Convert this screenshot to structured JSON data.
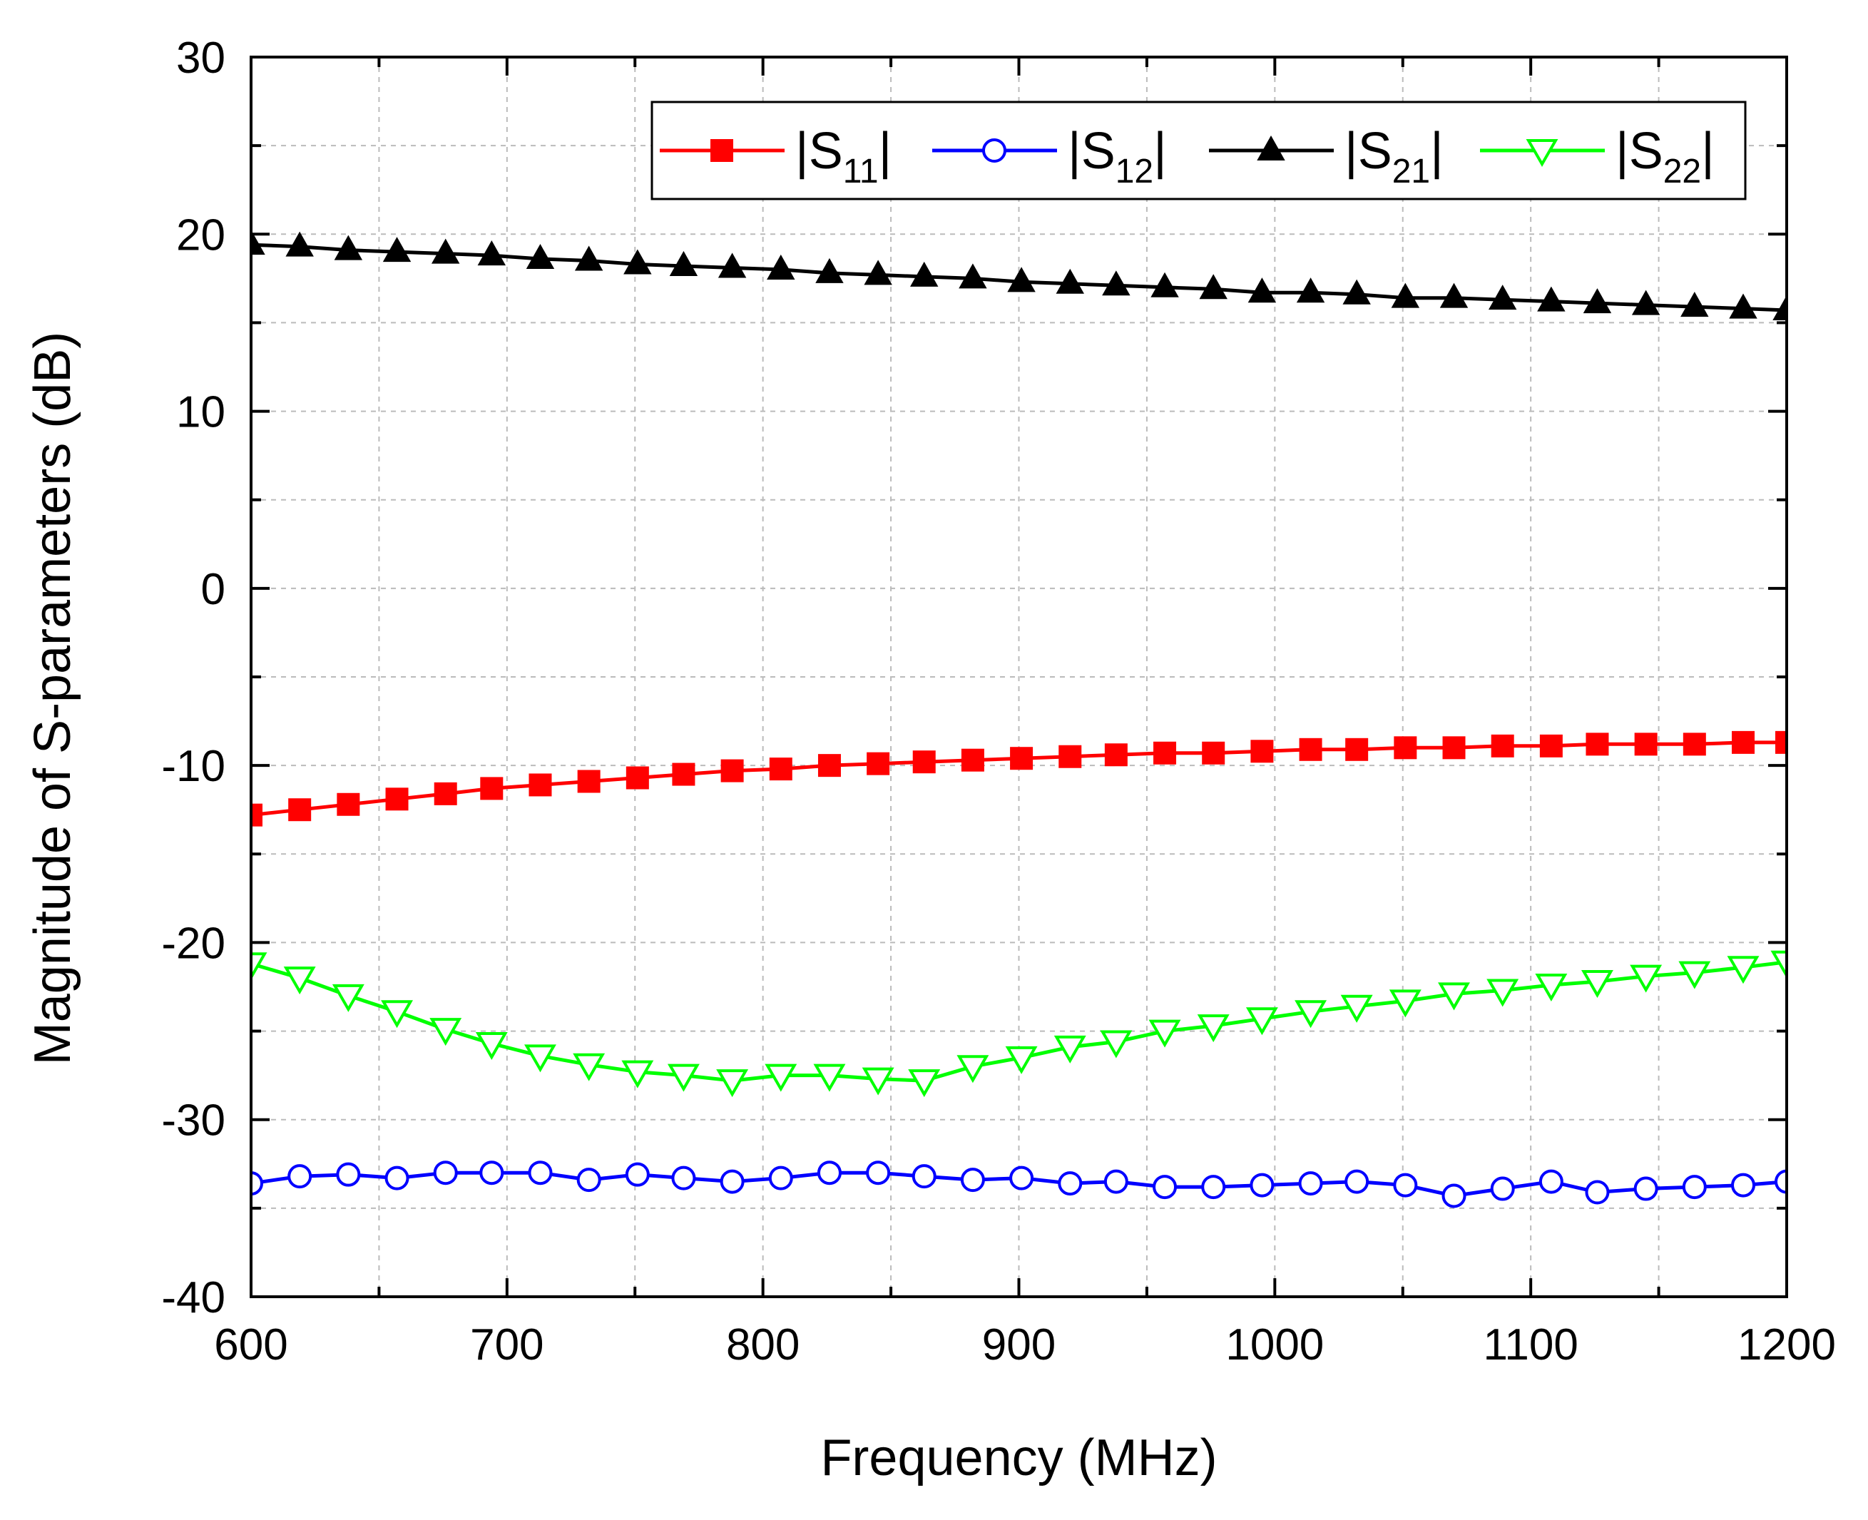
{
  "chart_data": {
    "type": "line",
    "title": "",
    "xlabel": "Frequency (MHz)",
    "ylabel": "Magnitude of S-parameters (dB)",
    "xlim": [
      600,
      1200
    ],
    "ylim": [
      -40,
      30
    ],
    "xticks": [
      600,
      700,
      800,
      900,
      1000,
      1100,
      1200
    ],
    "xtick_labels": [
      "600",
      "700",
      "800",
      "900",
      "1000",
      "1100",
      "1200"
    ],
    "yticks": [
      -40,
      -30,
      -20,
      -10,
      0,
      10,
      20,
      30
    ],
    "ytick_labels": [
      "-40",
      "-30",
      "-20",
      "-10",
      "0",
      "10",
      "20",
      "30"
    ],
    "grid": true,
    "legend_position": "top-right",
    "series": [
      {
        "name": "|S11|",
        "label_main": "|S",
        "label_sub": "11",
        "label_end": "|",
        "color": "#ff0000",
        "marker": "filled-square",
        "x": [
          600,
          619,
          638,
          657,
          676,
          694,
          713,
          732,
          751,
          769,
          788,
          807,
          826,
          845,
          863,
          882,
          901,
          920,
          938,
          957,
          976,
          995,
          1014,
          1032,
          1051,
          1070,
          1089,
          1108,
          1126,
          1145,
          1164,
          1183,
          1200
        ],
        "values": [
          -12.8,
          -12.5,
          -12.2,
          -11.9,
          -11.6,
          -11.3,
          -11.1,
          -10.9,
          -10.7,
          -10.5,
          -10.3,
          -10.2,
          -10.0,
          -9.9,
          -9.8,
          -9.7,
          -9.6,
          -9.5,
          -9.4,
          -9.3,
          -9.3,
          -9.2,
          -9.1,
          -9.1,
          -9.0,
          -9.0,
          -8.9,
          -8.9,
          -8.8,
          -8.8,
          -8.8,
          -8.7,
          -8.7
        ]
      },
      {
        "name": "|S12|",
        "label_main": "|S",
        "label_sub": "12",
        "label_end": "|",
        "color": "#0000ff",
        "marker": "open-circle",
        "x": [
          600,
          619,
          638,
          657,
          676,
          694,
          713,
          732,
          751,
          769,
          788,
          807,
          826,
          845,
          863,
          882,
          901,
          920,
          938,
          957,
          976,
          995,
          1014,
          1032,
          1051,
          1070,
          1089,
          1108,
          1126,
          1145,
          1164,
          1183,
          1200
        ],
        "values": [
          -33.6,
          -33.2,
          -33.1,
          -33.3,
          -33.0,
          -33.0,
          -33.0,
          -33.4,
          -33.1,
          -33.3,
          -33.5,
          -33.3,
          -33.0,
          -33.0,
          -33.2,
          -33.4,
          -33.3,
          -33.6,
          -33.5,
          -33.8,
          -33.8,
          -33.7,
          -33.6,
          -33.5,
          -33.7,
          -34.3,
          -33.9,
          -33.5,
          -34.1,
          -33.9,
          -33.8,
          -33.7,
          -33.5
        ]
      },
      {
        "name": "|S21|",
        "label_main": "|S",
        "label_sub": "21",
        "label_end": "|",
        "color": "#000000",
        "marker": "filled-triangle-up",
        "x": [
          600,
          619,
          638,
          657,
          676,
          694,
          713,
          732,
          751,
          769,
          788,
          807,
          826,
          845,
          863,
          882,
          901,
          920,
          938,
          957,
          976,
          995,
          1014,
          1032,
          1051,
          1070,
          1089,
          1108,
          1126,
          1145,
          1164,
          1183,
          1200
        ],
        "values": [
          19.4,
          19.3,
          19.1,
          19.0,
          18.9,
          18.8,
          18.6,
          18.5,
          18.3,
          18.2,
          18.1,
          18.0,
          17.8,
          17.7,
          17.6,
          17.5,
          17.3,
          17.2,
          17.1,
          17.0,
          16.9,
          16.7,
          16.7,
          16.6,
          16.4,
          16.4,
          16.3,
          16.2,
          16.1,
          16.0,
          15.9,
          15.8,
          15.7
        ]
      },
      {
        "name": "|S22|",
        "label_main": "|S",
        "label_sub": "22",
        "label_end": "|",
        "color": "#00ff00",
        "marker": "open-triangle-down",
        "x": [
          600,
          619,
          638,
          657,
          676,
          694,
          713,
          732,
          751,
          769,
          788,
          807,
          826,
          845,
          863,
          882,
          901,
          920,
          938,
          957,
          976,
          995,
          1014,
          1032,
          1051,
          1070,
          1089,
          1108,
          1126,
          1145,
          1164,
          1183,
          1200
        ],
        "values": [
          -21.2,
          -22.0,
          -23.0,
          -23.9,
          -24.9,
          -25.7,
          -26.4,
          -26.9,
          -27.3,
          -27.5,
          -27.8,
          -27.5,
          -27.5,
          -27.7,
          -27.8,
          -27.0,
          -26.5,
          -25.9,
          -25.6,
          -25.0,
          -24.7,
          -24.3,
          -23.9,
          -23.6,
          -23.3,
          -22.9,
          -22.7,
          -22.4,
          -22.2,
          -21.9,
          -21.7,
          -21.4,
          -21.1
        ]
      }
    ]
  }
}
